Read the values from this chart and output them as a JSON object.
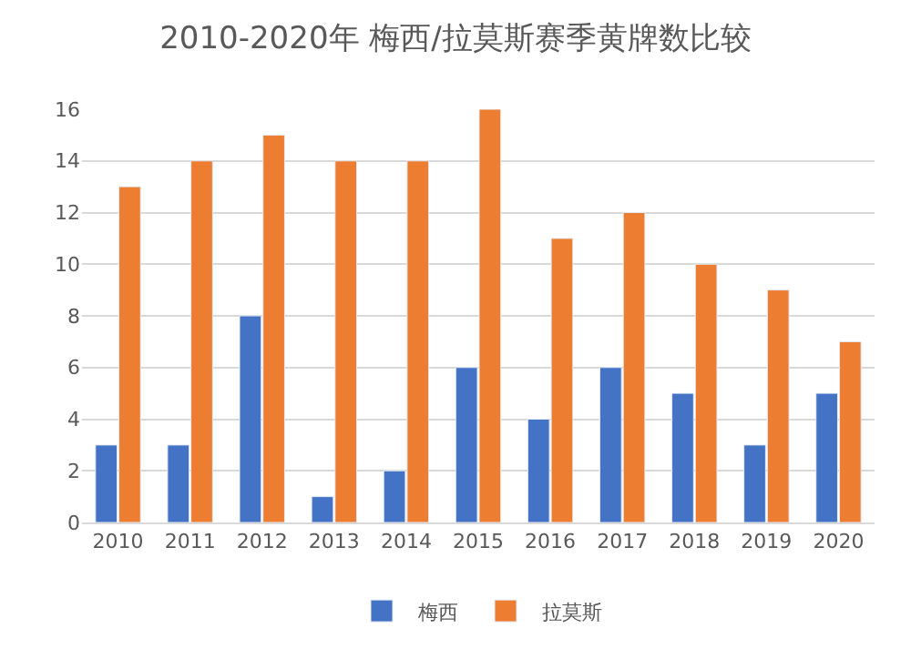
{
  "chart_data": {
    "type": "bar",
    "title": "2010-2020年 梅西/拉莫斯赛季黄牌数比较",
    "categories": [
      "2010",
      "2011",
      "2012",
      "2013",
      "2014",
      "2015",
      "2016",
      "2017",
      "2018",
      "2019",
      "2020"
    ],
    "series": [
      {
        "name": "梅西",
        "color": "#4472c4",
        "values": [
          3,
          3,
          8,
          1,
          2,
          6,
          4,
          6,
          5,
          3,
          5
        ]
      },
      {
        "name": "拉莫斯",
        "color": "#ed7d31",
        "values": [
          13,
          14,
          15,
          14,
          14,
          16,
          11,
          12,
          10,
          9,
          7
        ]
      }
    ],
    "ylim": [
      0,
      16
    ],
    "yticks": [
      0,
      2,
      4,
      6,
      8,
      10,
      12,
      14,
      16
    ],
    "grid": "y",
    "legend": "bottom"
  }
}
